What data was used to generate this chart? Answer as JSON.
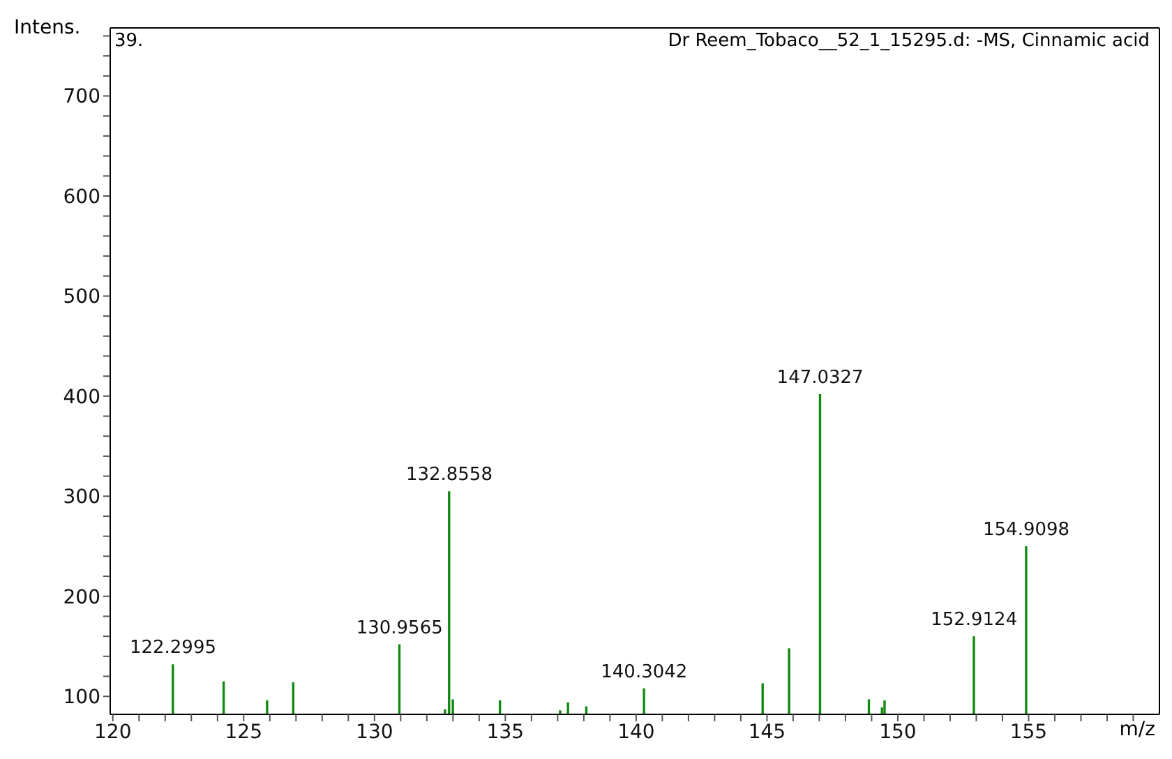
{
  "chart_data": {
    "type": "bar",
    "title": "Dr Reem_Tobaco__52_1_15295.d: -MS, Cinnamic acid",
    "xlabel": "m/z",
    "ylabel": "Intens.",
    "annotations": [
      "39.",
      {
        "text": "122.2995",
        "x": 122.2995,
        "y": 132
      },
      {
        "text": "130.9565",
        "x": 130.9565,
        "y": 152
      },
      {
        "text": "132.8558",
        "x": 132.8558,
        "y": 305
      },
      {
        "text": "140.3042",
        "x": 140.3042,
        "y": 108
      },
      {
        "text": "147.0327",
        "x": 147.0327,
        "y": 402
      },
      {
        "text": "152.9124",
        "x": 152.9124,
        "y": 160
      },
      {
        "text": "154.9098",
        "x": 154.9098,
        "y": 250
      }
    ],
    "x": [
      122.2995,
      124.24,
      124.8,
      125.9,
      126.9,
      130.9565,
      132.48,
      132.7,
      132.8558,
      133.0,
      134.8,
      137.1,
      137.4,
      138.1,
      140.3042,
      143.2,
      144.84,
      145.85,
      147.0327,
      148.9,
      149.0,
      149.4,
      149.5,
      152.9124,
      154.9098
    ],
    "values": [
      132,
      115,
      null,
      96,
      114,
      152,
      null,
      87,
      305,
      97,
      96,
      86,
      94,
      90,
      108,
      null,
      113,
      148,
      402,
      97,
      null,
      89,
      96,
      160,
      250
    ],
    "color": "#118811",
    "xlim": [
      119.9,
      160
    ],
    "ylim": [
      82,
      768
    ],
    "xticks": [
      120,
      {
        "value": 121,
        "label": null
      },
      {
        "value": 122,
        "label": null
      },
      {
        "value": 123,
        "label": null
      },
      {
        "value": 124,
        "label": null
      },
      125,
      {
        "value": 126,
        "label": null
      },
      {
        "value": 127,
        "label": null
      },
      {
        "value": 128,
        "label": null
      },
      {
        "value": 129,
        "label": null
      },
      130,
      {
        "value": 131,
        "label": null
      },
      {
        "value": 132,
        "label": null
      },
      {
        "value": 133,
        "label": null
      },
      {
        "value": 134,
        "label": null
      },
      135,
      {
        "value": 136,
        "label": null
      },
      {
        "value": 137,
        "label": null
      },
      {
        "value": 138,
        "label": null
      },
      {
        "value": 139,
        "label": null
      },
      140,
      {
        "value": 141,
        "label": null
      },
      {
        "value": 142,
        "label": null
      },
      {
        "value": 143,
        "label": null
      },
      {
        "value": 144,
        "label": null
      },
      145,
      {
        "value": 146,
        "label": null
      },
      {
        "value": 147,
        "label": null
      },
      {
        "value": 148,
        "label": null
      },
      {
        "value": 149,
        "label": null
      },
      150,
      {
        "value": 151,
        "label": null
      },
      {
        "value": 152,
        "label": null
      },
      {
        "value": 153,
        "label": null
      },
      {
        "value": 154,
        "label": null
      },
      155,
      {
        "value": 156,
        "label": null
      },
      {
        "value": 157,
        "label": null
      },
      {
        "value": 158,
        "label": null
      },
      {
        "value": 159,
        "label": null
      }
    ],
    "yticks": [
      100,
      {
        "value": 120,
        "label": null
      },
      {
        "value": 140,
        "label": null
      },
      {
        "value": 160,
        "label": null
      },
      {
        "value": 180,
        "label": null
      },
      200,
      {
        "value": 220,
        "label": null
      },
      {
        "value": 240,
        "label": null
      },
      {
        "value": 260,
        "label": null
      },
      {
        "value": 280,
        "label": null
      },
      300,
      {
        "value": 320,
        "label": null
      },
      {
        "value": 340,
        "label": null
      },
      {
        "value": 360,
        "label": null
      },
      {
        "value": 380,
        "label": null
      },
      400,
      {
        "value": 420,
        "label": null
      },
      {
        "value": 440,
        "label": null
      },
      {
        "value": 460,
        "label": null
      },
      {
        "value": 480,
        "label": null
      },
      500,
      {
        "value": 520,
        "label": null
      },
      {
        "value": 540,
        "label": null
      },
      {
        "value": 560,
        "label": null
      },
      {
        "value": 580,
        "label": null
      },
      600,
      {
        "value": 620,
        "label": null
      },
      {
        "value": 640,
        "label": null
      },
      {
        "value": 660,
        "label": null
      },
      {
        "value": 680,
        "label": null
      },
      700,
      {
        "value": 720,
        "label": null
      },
      {
        "value": 740,
        "label": null
      },
      {
        "value": 760,
        "label": null
      }
    ],
    "grid": false,
    "legend": false
  }
}
